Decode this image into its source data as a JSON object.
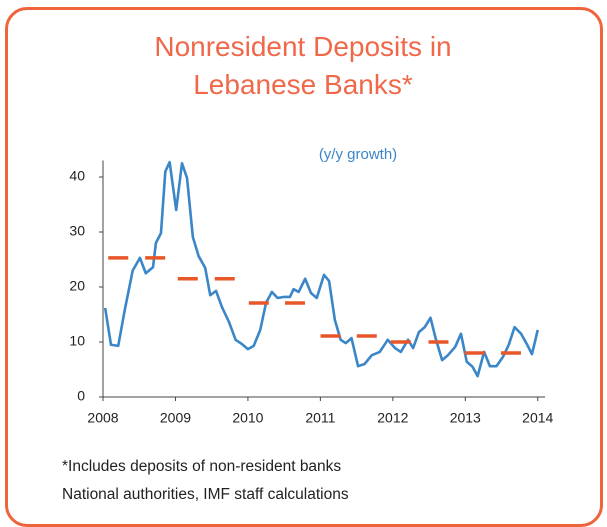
{
  "chart_data": {
    "type": "line",
    "title": "Nonresident Deposits in Lebanese Banks*",
    "subtitle": "(y/y growth)",
    "footnote": "*Includes deposits of non-resident banks",
    "source": "National authorities, IMF staff calculations",
    "xlim": [
      2008,
      2014.1
    ],
    "xticks": [
      2008,
      2009,
      2010,
      2011,
      2012,
      2013,
      2014
    ],
    "ylim": [
      0,
      43
    ],
    "yticks": [
      0,
      10,
      20,
      30,
      40
    ],
    "series": [
      {
        "color": "#3a86c8",
        "style": "line",
        "x": [
          2008.03,
          2008.11,
          2008.21,
          2008.3,
          2008.41,
          2008.51,
          2008.59,
          2008.69,
          2008.73,
          2008.8,
          2008.86,
          2008.92,
          2009.01,
          2009.09,
          2009.16,
          2009.24,
          2009.32,
          2009.41,
          2009.48,
          2009.56,
          2009.64,
          2009.74,
          2009.83,
          2009.92,
          2010.0,
          2010.08,
          2010.17,
          2010.25,
          2010.33,
          2010.41,
          2010.5,
          2010.58,
          2010.63,
          2010.7,
          2010.79,
          2010.87,
          2010.95,
          2011.05,
          2011.12,
          2011.2,
          2011.28,
          2011.35,
          2011.43,
          2011.52,
          2011.61,
          2011.71,
          2011.82,
          2011.93,
          2012.03,
          2012.11,
          2012.21,
          2012.28,
          2012.36,
          2012.44,
          2012.52,
          2012.59,
          2012.68,
          2012.76,
          2012.86,
          2012.94,
          2013.02,
          2013.1,
          2013.17,
          2013.26,
          2013.34,
          2013.43,
          2013.52,
          2013.6,
          2013.68,
          2013.77,
          2013.85,
          2013.92,
          2014.0
        ],
        "values": [
          16.2,
          9.5,
          9.3,
          15.8,
          23,
          25.3,
          22.5,
          23.6,
          28,
          29.8,
          41,
          42.7,
          34,
          42.5,
          39.8,
          29.1,
          25.6,
          23.5,
          18.5,
          19.3,
          16.4,
          13.6,
          10.4,
          9.6,
          8.7,
          9.3,
          12.2,
          17.1,
          19.1,
          18,
          18.2,
          18.2,
          19.6,
          19.1,
          21.5,
          18.9,
          18,
          22.2,
          21.1,
          14,
          10.4,
          9.8,
          10.7,
          5.6,
          6,
          7.6,
          8.2,
          10.4,
          8.9,
          8.2,
          10.4,
          8.9,
          11.8,
          12.7,
          14.4,
          10.7,
          6.7,
          7.6,
          9.1,
          11.5,
          6.4,
          5.5,
          3.8,
          8.2,
          5.6,
          5.6,
          7.3,
          9.5,
          12.7,
          11.5,
          9.6,
          7.8,
          12.2
        ]
      },
      {
        "color": "#e8572a",
        "style": "dash",
        "x": [
          2008.21,
          2008.72,
          2009.17,
          2009.68,
          2010.15,
          2010.65,
          2011.14,
          2011.64,
          2012.11,
          2012.63,
          2013.13,
          2013.63
        ],
        "values": [
          25.3,
          25.3,
          21.5,
          21.5,
          17.1,
          17.1,
          11.1,
          11.1,
          10,
          10,
          8,
          8
        ]
      }
    ]
  }
}
